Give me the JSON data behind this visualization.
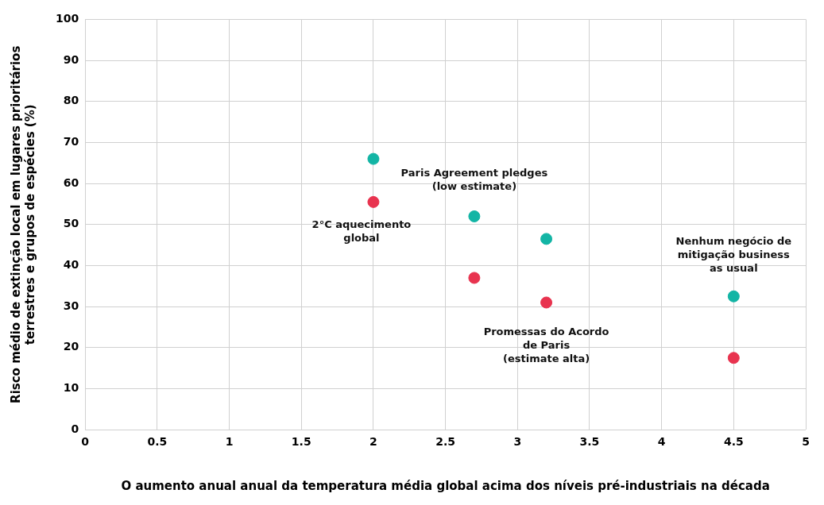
{
  "chart_data": {
    "type": "scatter",
    "xlabel": "O aumento anual anual da temperatura média global acima dos níveis pré-industriais na década",
    "ylabel": "Risco médio de extinção local em lugares prioritários\nterrestres e grupos de espécies (%)",
    "xlim": [
      0,
      5
    ],
    "xticks": [
      0,
      0.5,
      1,
      1.5,
      2,
      2.5,
      3,
      3.5,
      4,
      4.5,
      5
    ],
    "ylim": [
      0,
      100
    ],
    "yticks": [
      0,
      10,
      20,
      30,
      40,
      50,
      60,
      70,
      80,
      90,
      100
    ],
    "grid": true,
    "legend": false,
    "marker": "circle",
    "series": [
      {
        "color": "#13b5a5",
        "x": [
          2,
          2.7,
          3.2,
          4.5
        ],
        "values": [
          66,
          52,
          46.5,
          32.5
        ]
      },
      {
        "color": "#e8334f",
        "x": [
          2,
          2.7,
          3.2,
          4.5
        ],
        "values": [
          55.5,
          37,
          31,
          17.5
        ]
      }
    ],
    "annotations": [
      {
        "text": "2°C aquecimento\nglobal",
        "x": 2,
        "y": 55.5
      },
      {
        "text": "Paris Agreement pledges\n(low estimate)",
        "x": 2.7,
        "y": 52
      },
      {
        "text": "Promessas do Acordo\nde Paris\n(estimate alta)",
        "x": 3.2,
        "y": 31
      },
      {
        "text": "Nenhum negócio de\nmitigação business\nas usual",
        "x": 4.5,
        "y": 32.5
      }
    ]
  }
}
